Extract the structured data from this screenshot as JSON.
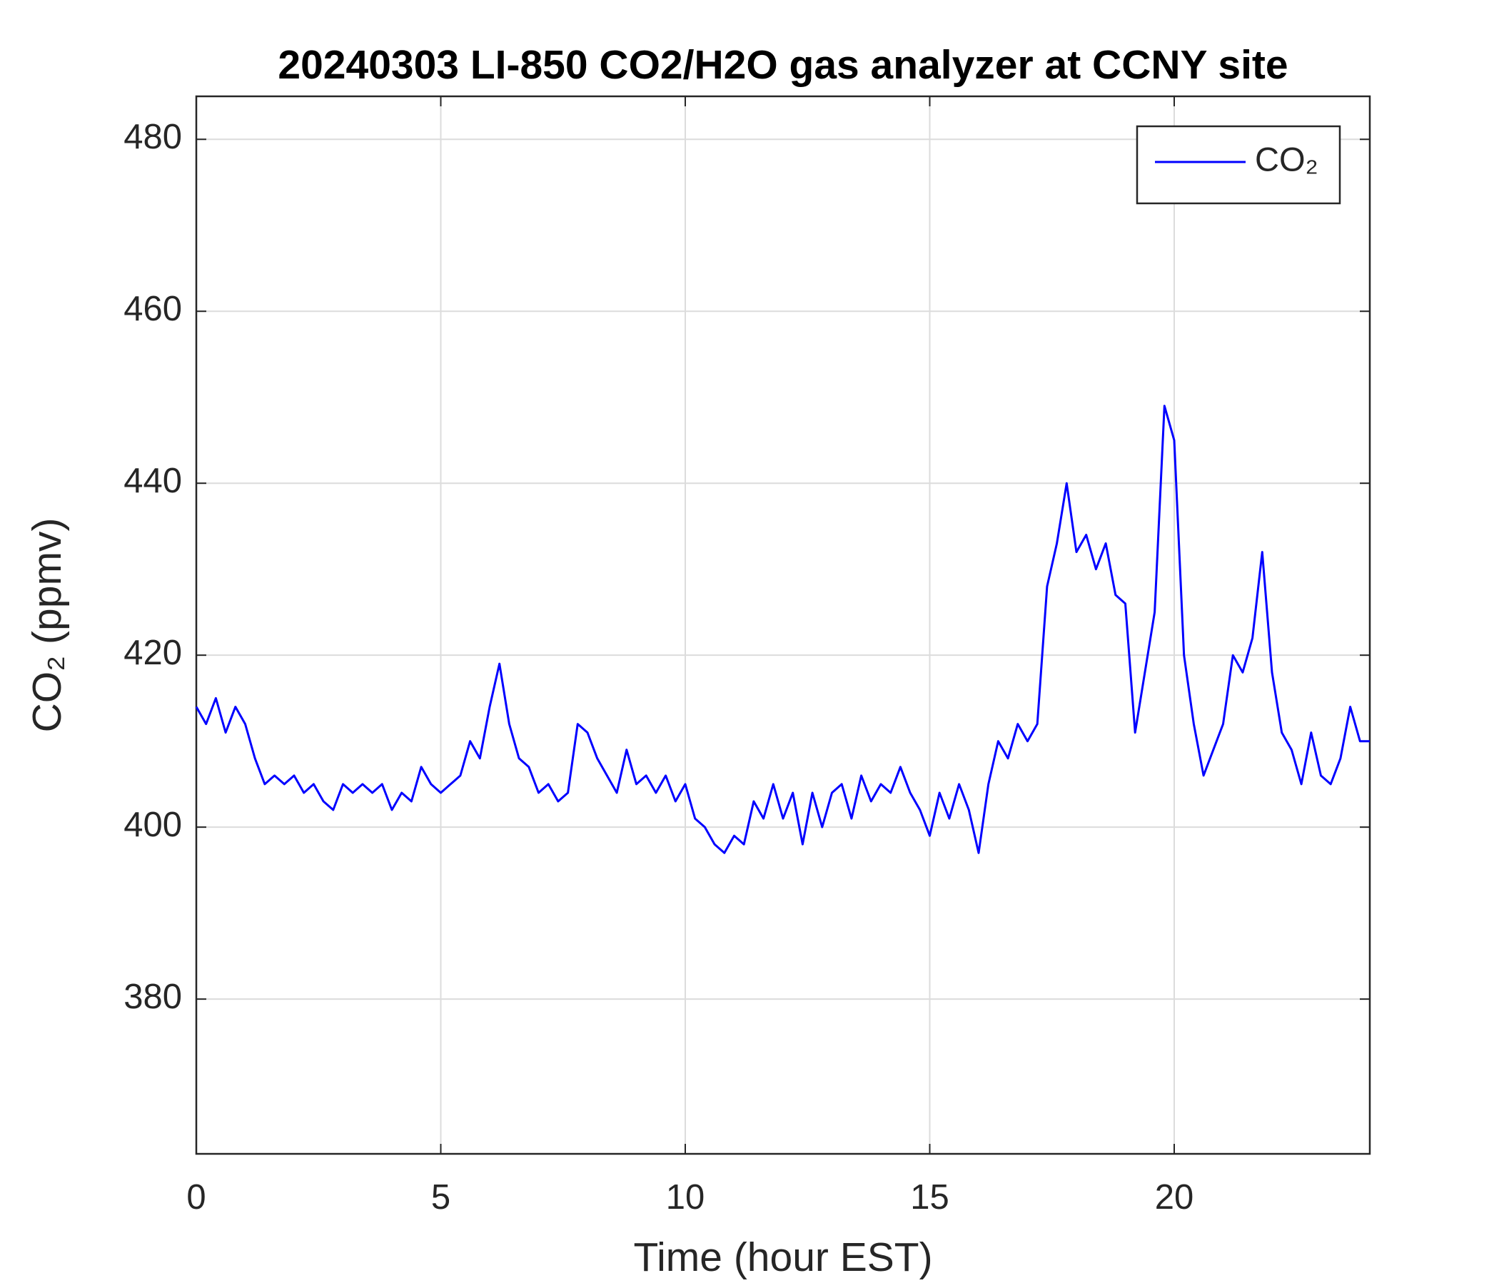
{
  "chart_data": {
    "type": "line",
    "title": "20240303 LI-850 CO2/H2O gas analyzer at CCNY site",
    "x_label": "Time (hour EST)",
    "y_label": "CO₂ (ppmv)",
    "x": [
      0,
      0.2,
      0.4,
      0.6,
      0.8,
      1,
      1.2,
      1.4,
      1.6,
      1.8,
      2,
      2.2,
      2.4,
      2.6,
      2.8,
      3,
      3.2,
      3.4,
      3.6,
      3.8,
      4,
      4.2,
      4.4,
      4.6,
      4.8,
      5,
      5.2,
      5.4,
      5.6,
      5.8,
      6,
      6.2,
      6.4,
      6.6,
      6.8,
      7,
      7.2,
      7.4,
      7.6,
      7.8,
      8,
      8.2,
      8.4,
      8.6,
      8.8,
      9,
      9.2,
      9.4,
      9.6,
      9.8,
      10,
      10.2,
      10.4,
      10.6,
      10.8,
      11,
      11.2,
      11.4,
      11.6,
      11.8,
      12,
      12.2,
      12.4,
      12.6,
      12.8,
      13,
      13.2,
      13.4,
      13.6,
      13.8,
      14,
      14.2,
      14.4,
      14.6,
      14.8,
      15,
      15.2,
      15.4,
      15.6,
      15.8,
      16,
      16.2,
      16.4,
      16.6,
      16.8,
      17,
      17.2,
      17.4,
      17.6,
      17.8,
      18,
      18.2,
      18.4,
      18.6,
      18.8,
      19,
      19.2,
      19.4,
      19.6,
      19.8,
      20,
      20.2,
      20.4,
      20.6,
      20.8,
      21,
      21.2,
      21.4,
      21.6,
      21.8,
      22,
      22.2,
      22.4,
      22.6,
      22.8,
      23,
      23.2,
      23.4,
      23.6,
      23.8,
      24
    ],
    "series": [
      {
        "name": "CO₂",
        "color": "#0000ff",
        "values": [
          414,
          412,
          415,
          411,
          414,
          412,
          408,
          405,
          406,
          405,
          406,
          404,
          405,
          403,
          402,
          405,
          404,
          405,
          404,
          405,
          402,
          404,
          403,
          407,
          405,
          404,
          405,
          406,
          410,
          408,
          414,
          419,
          412,
          408,
          407,
          404,
          405,
          403,
          404,
          412,
          411,
          408,
          406,
          404,
          409,
          405,
          406,
          404,
          406,
          403,
          405,
          401,
          400,
          398,
          397,
          399,
          398,
          403,
          401,
          405,
          401,
          404,
          398,
          404,
          400,
          404,
          405,
          401,
          406,
          403,
          405,
          404,
          407,
          404,
          402,
          399,
          404,
          401,
          405,
          402,
          397,
          405,
          410,
          408,
          412,
          410,
          412,
          428,
          433,
          440,
          432,
          434,
          430,
          433,
          427,
          426,
          411,
          418,
          425,
          449,
          445,
          420,
          412,
          406,
          409,
          412,
          420,
          418,
          422,
          432,
          418,
          411,
          409,
          405,
          411,
          406,
          405,
          408,
          414,
          410,
          410
        ]
      }
    ],
    "xlim": [
      0,
      24
    ],
    "xticks": [
      0,
      5,
      10,
      15,
      20
    ],
    "ylim": [
      362,
      485
    ],
    "yticks": [
      380,
      400,
      420,
      440,
      460,
      480
    ],
    "grid": true,
    "legend": "upper right"
  }
}
